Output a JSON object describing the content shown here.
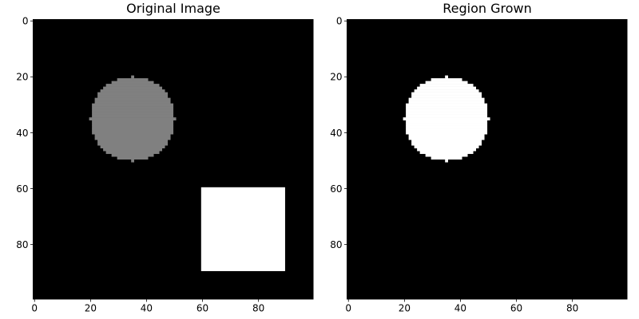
{
  "chart_data": [
    {
      "type": "heatmap",
      "title": "Original Image",
      "colormap": "gray",
      "value_range": [
        0,
        255
      ],
      "image_size": [
        100,
        100
      ],
      "background_value": 0,
      "xlim": [
        0,
        99
      ],
      "ylim": [
        99,
        0
      ],
      "xticks": [
        0,
        20,
        40,
        60,
        80
      ],
      "yticks": [
        0,
        20,
        40,
        60,
        80
      ],
      "shapes": [
        {
          "kind": "disk",
          "center": [
            35,
            35
          ],
          "radius": 15,
          "value": 128
        },
        {
          "kind": "rectangle",
          "x_range": [
            60,
            89
          ],
          "y_range": [
            60,
            89
          ],
          "value": 255
        }
      ]
    },
    {
      "type": "heatmap",
      "title": "Region Grown",
      "colormap": "gray",
      "value_range": [
        0,
        1
      ],
      "image_size": [
        100,
        100
      ],
      "background_value": 0,
      "xlim": [
        0,
        99
      ],
      "ylim": [
        99,
        0
      ],
      "xticks": [
        0,
        20,
        40,
        60,
        80
      ],
      "yticks": [
        0,
        20,
        40,
        60,
        80
      ],
      "shapes": [
        {
          "kind": "disk",
          "center": [
            35,
            35
          ],
          "radius": 15,
          "value": 1
        }
      ]
    }
  ]
}
